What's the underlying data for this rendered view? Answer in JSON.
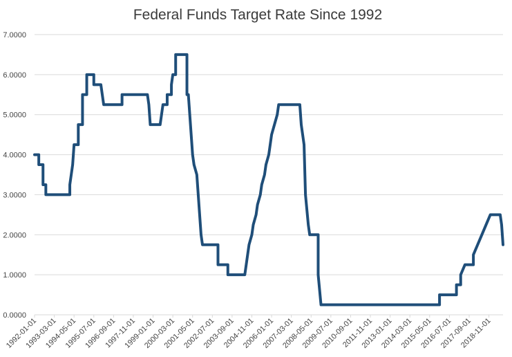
{
  "chart_data": {
    "type": "line",
    "title": "Federal Funds Target Rate Since 1992",
    "xlabel": "",
    "ylabel": "",
    "ylim": [
      0,
      7
    ],
    "yticks": [
      "0.0000",
      "1.0000",
      "2.0000",
      "3.0000",
      "4.0000",
      "5.0000",
      "6.0000",
      "7.0000"
    ],
    "xticks": [
      "1992-01-01",
      "1993-03-01",
      "1994-05-01",
      "1995-07-01",
      "1996-09-01",
      "1997-11-01",
      "1999-01-01",
      "2000-03-01",
      "2001-05-01",
      "2002-07-01",
      "2003-09-01",
      "2004-11-01",
      "2006-01-01",
      "2007-03-01",
      "2008-05-01",
      "2009-07-01",
      "2010-09-01",
      "2011-11-01",
      "2013-01-01",
      "2014-03-01",
      "2015-05-01",
      "2016-07-01",
      "2017-09-01",
      "2018-11-01"
    ],
    "x_range": [
      "1992-01-01",
      "2019-09-01"
    ],
    "grid": true,
    "legend": "none",
    "color": "#1f4e79",
    "series": [
      {
        "points": [
          [
            "1992-01-01",
            4.0
          ],
          [
            "1992-04-01",
            4.0
          ],
          [
            "1992-04-01",
            3.75
          ],
          [
            "1992-07-01",
            3.75
          ],
          [
            "1992-07-01",
            3.25
          ],
          [
            "1992-09-01",
            3.25
          ],
          [
            "1992-09-01",
            3.0
          ],
          [
            "1994-02-01",
            3.0
          ],
          [
            "1994-02-01",
            3.25
          ],
          [
            "1994-03-01",
            3.5
          ],
          [
            "1994-04-01",
            3.75
          ],
          [
            "1994-05-01",
            4.25
          ],
          [
            "1994-08-01",
            4.25
          ],
          [
            "1994-08-01",
            4.75
          ],
          [
            "1994-11-01",
            4.75
          ],
          [
            "1994-11-01",
            5.5
          ],
          [
            "1995-02-01",
            5.5
          ],
          [
            "1995-02-01",
            6.0
          ],
          [
            "1995-07-01",
            6.0
          ],
          [
            "1995-07-01",
            5.75
          ],
          [
            "1995-12-01",
            5.75
          ],
          [
            "1996-01-01",
            5.5
          ],
          [
            "1996-02-01",
            5.25
          ],
          [
            "1997-03-01",
            5.25
          ],
          [
            "1997-03-01",
            5.5
          ],
          [
            "1998-09-01",
            5.5
          ],
          [
            "1998-10-01",
            5.25
          ],
          [
            "1998-11-01",
            4.75
          ],
          [
            "1999-06-01",
            4.75
          ],
          [
            "1999-07-01",
            5.0
          ],
          [
            "1999-08-01",
            5.25
          ],
          [
            "1999-11-01",
            5.25
          ],
          [
            "1999-11-01",
            5.5
          ],
          [
            "2000-02-01",
            5.5
          ],
          [
            "2000-02-01",
            5.75
          ],
          [
            "2000-03-01",
            6.0
          ],
          [
            "2000-05-01",
            6.0
          ],
          [
            "2000-05-01",
            6.5
          ],
          [
            "2001-01-01",
            6.5
          ],
          [
            "2001-01-01",
            5.5
          ],
          [
            "2001-02-01",
            5.5
          ],
          [
            "2001-03-01",
            5.0
          ],
          [
            "2001-04-01",
            4.5
          ],
          [
            "2001-05-01",
            4.0
          ],
          [
            "2001-06-01",
            3.75
          ],
          [
            "2001-08-01",
            3.5
          ],
          [
            "2001-09-01",
            3.0
          ],
          [
            "2001-10-01",
            2.5
          ],
          [
            "2001-11-01",
            2.0
          ],
          [
            "2001-12-01",
            1.75
          ],
          [
            "2002-11-01",
            1.75
          ],
          [
            "2002-11-01",
            1.25
          ],
          [
            "2003-06-01",
            1.25
          ],
          [
            "2003-06-01",
            1.0
          ],
          [
            "2004-06-01",
            1.0
          ],
          [
            "2004-07-01",
            1.25
          ],
          [
            "2004-08-01",
            1.5
          ],
          [
            "2004-09-01",
            1.75
          ],
          [
            "2004-11-01",
            2.0
          ],
          [
            "2004-12-01",
            2.25
          ],
          [
            "2005-02-01",
            2.5
          ],
          [
            "2005-03-01",
            2.75
          ],
          [
            "2005-05-01",
            3.0
          ],
          [
            "2005-06-01",
            3.25
          ],
          [
            "2005-08-01",
            3.5
          ],
          [
            "2005-09-01",
            3.75
          ],
          [
            "2005-11-01",
            4.0
          ],
          [
            "2005-12-01",
            4.25
          ],
          [
            "2006-01-01",
            4.5
          ],
          [
            "2006-03-01",
            4.75
          ],
          [
            "2006-05-01",
            5.0
          ],
          [
            "2006-06-01",
            5.25
          ],
          [
            "2007-09-01",
            5.25
          ],
          [
            "2007-10-01",
            4.75
          ],
          [
            "2007-11-01",
            4.5
          ],
          [
            "2007-12-01",
            4.25
          ],
          [
            "2008-01-01",
            3.0
          ],
          [
            "2008-03-01",
            2.25
          ],
          [
            "2008-04-01",
            2.0
          ],
          [
            "2008-10-01",
            2.0
          ],
          [
            "2008-10-01",
            1.0
          ],
          [
            "2008-12-01",
            0.25
          ],
          [
            "2015-12-01",
            0.25
          ],
          [
            "2015-12-01",
            0.5
          ],
          [
            "2016-12-01",
            0.5
          ],
          [
            "2016-12-01",
            0.75
          ],
          [
            "2017-03-01",
            0.75
          ],
          [
            "2017-03-01",
            1.0
          ],
          [
            "2017-06-01",
            1.25
          ],
          [
            "2017-12-01",
            1.25
          ],
          [
            "2017-12-01",
            1.5
          ],
          [
            "2018-03-01",
            1.75
          ],
          [
            "2018-06-01",
            2.0
          ],
          [
            "2018-09-01",
            2.25
          ],
          [
            "2018-12-01",
            2.5
          ],
          [
            "2019-07-01",
            2.5
          ],
          [
            "2019-08-01",
            2.25
          ],
          [
            "2019-09-01",
            1.75
          ]
        ]
      }
    ]
  }
}
